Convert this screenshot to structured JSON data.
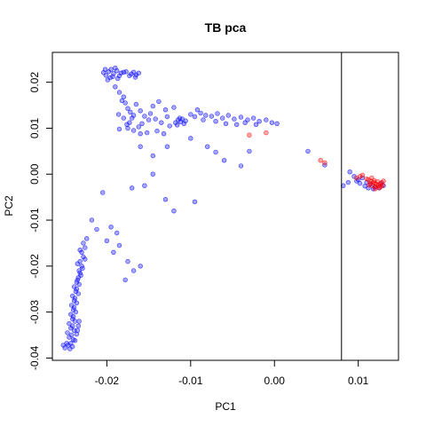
{
  "chart_data": {
    "type": "scatter",
    "title": "TB pca",
    "xlabel": "PC1",
    "ylabel": "PC2",
    "xlim": [
      -0.0265,
      0.0148
    ],
    "ylim": [
      -0.0405,
      0.0265
    ],
    "xticks": [
      {
        "value": -0.02,
        "label": "-0.02"
      },
      {
        "value": -0.01,
        "label": "-0.01"
      },
      {
        "value": 0.0,
        "label": "0.00"
      },
      {
        "value": 0.01,
        "label": "0.01"
      }
    ],
    "yticks": [
      {
        "value": -0.04,
        "label": "-0.04"
      },
      {
        "value": -0.03,
        "label": "-0.03"
      },
      {
        "value": -0.02,
        "label": "-0.02"
      },
      {
        "value": -0.01,
        "label": "-0.01"
      },
      {
        "value": 0.0,
        "label": "0.00"
      },
      {
        "value": 0.01,
        "label": "0.01"
      },
      {
        "value": 0.02,
        "label": "0.02"
      }
    ],
    "vline": 0.008,
    "grid": false,
    "colors": {
      "group_a": "#0000ff",
      "group_b": "#ff0000",
      "vline": "#000000"
    },
    "series": [
      {
        "color": "blue",
        "points": [
          [
            -0.0198,
            0.0223
          ],
          [
            -0.0195,
            0.0228
          ],
          [
            -0.0192,
            0.0219
          ],
          [
            -0.0201,
            0.0215
          ],
          [
            -0.0188,
            0.0225
          ],
          [
            -0.0196,
            0.021
          ],
          [
            -0.0185,
            0.0214
          ],
          [
            -0.0204,
            0.0221
          ],
          [
            -0.019,
            0.0231
          ],
          [
            -0.0183,
            0.022
          ],
          [
            -0.0199,
            0.0205
          ],
          [
            -0.0193,
            0.0212
          ],
          [
            -0.0187,
            0.0208
          ],
          [
            -0.018,
            0.0222
          ],
          [
            -0.0202,
            0.0228
          ],
          [
            -0.0171,
            0.0218
          ],
          [
            -0.0168,
            0.0222
          ],
          [
            -0.0165,
            0.0216
          ],
          [
            -0.0173,
            0.0214
          ],
          [
            -0.0162,
            0.022
          ],
          [
            -0.0166,
            0.0211
          ],
          [
            -0.0177,
            0.0223
          ],
          [
            -0.019,
            0.019
          ],
          [
            -0.0185,
            0.0178
          ],
          [
            -0.018,
            0.0168
          ],
          [
            -0.0178,
            0.0155
          ],
          [
            -0.0175,
            0.0143
          ],
          [
            -0.0172,
            0.0135
          ],
          [
            -0.017,
            0.0122
          ],
          [
            -0.0182,
            0.016
          ],
          [
            -0.0176,
            0.0108
          ],
          [
            -0.0168,
            0.0128
          ],
          [
            -0.0173,
            0.0112
          ],
          [
            -0.0186,
            0.013
          ],
          [
            -0.018,
            0.0122
          ],
          [
            -0.0165,
            0.0152
          ],
          [
            -0.016,
            0.0138
          ],
          [
            -0.0155,
            0.0126
          ],
          [
            -0.015,
            0.0118
          ],
          [
            -0.0158,
            0.011
          ],
          [
            -0.0162,
            0.0103
          ],
          [
            -0.0148,
            0.0132
          ],
          [
            -0.0145,
            0.0148
          ],
          [
            -0.0138,
            0.0158
          ],
          [
            -0.0142,
            0.012
          ],
          [
            -0.0135,
            0.0112
          ],
          [
            -0.0128,
            0.0125
          ],
          [
            -0.013,
            0.014
          ],
          [
            -0.012,
            0.0145
          ],
          [
            -0.0125,
            0.0105
          ],
          [
            -0.0115,
            0.0118
          ],
          [
            -0.0112,
            0.0114
          ],
          [
            -0.0118,
            0.0112
          ],
          [
            -0.011,
            0.012
          ],
          [
            -0.0108,
            0.011
          ],
          [
            -0.0116,
            0.0107
          ],
          [
            -0.0113,
            0.0122
          ],
          [
            -0.0106,
            0.0116
          ],
          [
            -0.01,
            0.013
          ],
          [
            -0.0095,
            0.0125
          ],
          [
            -0.0088,
            0.0133
          ],
          [
            -0.0082,
            0.0128
          ],
          [
            -0.0075,
            0.0126
          ],
          [
            -0.0068,
            0.0132
          ],
          [
            -0.0062,
            0.0122
          ],
          [
            -0.0055,
            0.0128
          ],
          [
            -0.0048,
            0.012
          ],
          [
            -0.004,
            0.0124
          ],
          [
            -0.0032,
            0.0118
          ],
          [
            -0.0025,
            0.0122
          ],
          [
            -0.0018,
            0.0115
          ],
          [
            -0.001,
            0.0118
          ],
          [
            -0.0003,
            0.0112
          ],
          [
            0.0003,
            0.011
          ],
          [
            -0.0092,
            0.014
          ],
          [
            -0.0085,
            0.0118
          ],
          [
            -0.007,
            0.0115
          ],
          [
            -0.0058,
            0.011
          ],
          [
            -0.0045,
            0.0108
          ],
          [
            -0.0035,
            0.0112
          ],
          [
            -0.0022,
            0.0108
          ],
          [
            -0.0175,
            0.01
          ],
          [
            -0.0168,
            0.0095
          ],
          [
            -0.016,
            0.0088
          ],
          [
            -0.0152,
            0.009
          ],
          [
            -0.014,
            0.0094
          ],
          [
            -0.0132,
            0.0088
          ],
          [
            -0.0185,
            0.0098
          ],
          [
            -0.016,
            0.006
          ],
          [
            -0.0145,
            0.004
          ],
          [
            -0.0128,
            0.006
          ],
          [
            -0.01,
            0.0078
          ],
          [
            -0.008,
            0.006
          ],
          [
            -0.007,
            0.0048
          ],
          [
            -0.006,
            0.003
          ],
          [
            -0.0145,
            0.0
          ],
          [
            -0.017,
            -0.003
          ],
          [
            -0.0155,
            -0.0025
          ],
          [
            -0.013,
            -0.0055
          ],
          [
            -0.012,
            -0.008
          ],
          [
            -0.0095,
            -0.006
          ],
          [
            -0.004,
            0.0018
          ],
          [
            -0.003,
            0.005
          ],
          [
            0.004,
            0.005
          ],
          [
            0.006,
            0.002
          ],
          [
            0.0088,
            -0.0018
          ],
          [
            0.009,
            0.0005
          ],
          [
            0.0082,
            -0.0025
          ],
          [
            -0.0205,
            -0.004
          ],
          [
            -0.0218,
            -0.01
          ],
          [
            -0.0212,
            -0.012
          ],
          [
            -0.02,
            -0.0145
          ],
          [
            -0.0185,
            -0.0155
          ],
          [
            -0.0175,
            -0.019
          ],
          [
            -0.0168,
            -0.021
          ],
          [
            -0.0178,
            -0.023
          ],
          [
            -0.016,
            -0.02
          ],
          [
            -0.0192,
            -0.017
          ],
          [
            -0.0195,
            -0.0115
          ],
          [
            -0.0188,
            -0.0128
          ],
          [
            -0.0228,
            -0.015
          ],
          [
            -0.0226,
            -0.016
          ],
          [
            -0.023,
            -0.017
          ],
          [
            -0.0228,
            -0.018
          ],
          [
            -0.0232,
            -0.019
          ],
          [
            -0.023,
            -0.02
          ],
          [
            -0.0233,
            -0.021
          ],
          [
            -0.0231,
            -0.022
          ],
          [
            -0.0235,
            -0.023
          ],
          [
            -0.0233,
            -0.024
          ],
          [
            -0.0236,
            -0.025
          ],
          [
            -0.0234,
            -0.026
          ],
          [
            -0.0238,
            -0.027
          ],
          [
            -0.0236,
            -0.028
          ],
          [
            -0.0239,
            -0.029
          ],
          [
            -0.0237,
            -0.03
          ],
          [
            -0.024,
            -0.031
          ],
          [
            -0.0238,
            -0.032
          ],
          [
            -0.0241,
            -0.033
          ],
          [
            -0.0239,
            -0.034
          ],
          [
            -0.0242,
            -0.035
          ],
          [
            -0.024,
            -0.036
          ],
          [
            -0.0243,
            -0.0368
          ],
          [
            -0.0241,
            -0.0375
          ],
          [
            -0.0246,
            -0.0372
          ],
          [
            -0.025,
            -0.0378
          ],
          [
            -0.0248,
            -0.0368
          ],
          [
            -0.0244,
            -0.038
          ],
          [
            -0.0252,
            -0.0372
          ],
          [
            -0.0245,
            -0.0355
          ],
          [
            -0.0247,
            -0.0345
          ],
          [
            -0.0243,
            -0.0335
          ],
          [
            -0.0245,
            -0.0325
          ],
          [
            -0.0241,
            -0.0315
          ],
          [
            -0.0243,
            -0.0305
          ],
          [
            -0.024,
            -0.0295
          ],
          [
            -0.0242,
            -0.0285
          ],
          [
            -0.0239,
            -0.0275
          ],
          [
            -0.0241,
            -0.0265
          ],
          [
            -0.0237,
            -0.0255
          ],
          [
            -0.0239,
            -0.0245
          ],
          [
            -0.0236,
            -0.0235
          ],
          [
            -0.0234,
            -0.0225
          ],
          [
            -0.0232,
            -0.0215
          ],
          [
            -0.0229,
            -0.0205
          ],
          [
            -0.0235,
            -0.0195
          ],
          [
            -0.0226,
            -0.0185
          ],
          [
            -0.0224,
            -0.014
          ],
          [
            -0.0232,
            -0.0165
          ],
          [
            -0.0236,
            -0.0348
          ],
          [
            -0.0238,
            -0.0362
          ],
          [
            -0.0235,
            -0.034
          ],
          [
            -0.0234,
            -0.033
          ],
          [
            -0.0233,
            -0.032
          ],
          [
            0.0095,
            -0.0005
          ],
          [
            0.01,
            -0.0012
          ],
          [
            0.0105,
            -0.0008
          ],
          [
            0.011,
            -0.0018
          ],
          [
            0.0115,
            -0.0022
          ],
          [
            0.012,
            -0.0028
          ],
          [
            0.0125,
            -0.003
          ],
          [
            0.013,
            -0.0025
          ],
          [
            0.0108,
            -0.0026
          ],
          [
            0.0102,
            -0.002
          ],
          [
            0.0118,
            -0.0032
          ],
          [
            0.0112,
            -0.003
          ],
          [
            0.0098,
            -0.0015
          ],
          [
            0.0127,
            -0.002
          ]
        ]
      },
      {
        "color": "red",
        "points": [
          [
            0.0112,
            -0.0012
          ],
          [
            0.0115,
            -0.0015
          ],
          [
            0.0118,
            -0.0018
          ],
          [
            0.012,
            -0.002
          ],
          [
            0.0122,
            -0.0022
          ],
          [
            0.0124,
            -0.0025
          ],
          [
            0.0126,
            -0.0022
          ],
          [
            0.0128,
            -0.0018
          ],
          [
            0.0117,
            -0.0025
          ],
          [
            0.0121,
            -0.0028
          ],
          [
            0.0125,
            -0.003
          ],
          [
            0.0119,
            -0.0014
          ],
          [
            0.0123,
            -0.0016
          ],
          [
            0.0127,
            -0.0027
          ],
          [
            0.0114,
            -0.002
          ],
          [
            0.011,
            -0.001
          ],
          [
            0.0116,
            -0.0008
          ],
          [
            0.0129,
            -0.0024
          ],
          [
            0.0113,
            -0.0024
          ],
          [
            0.012,
            -0.0032
          ],
          [
            0.0102,
            -0.0005
          ],
          [
            0.0105,
            -0.0002
          ],
          [
            0.0098,
            -0.0008
          ],
          [
            0.0055,
            0.003
          ],
          [
            0.006,
            0.0025
          ],
          [
            -0.001,
            0.009
          ],
          [
            -0.003,
            0.0085
          ],
          [
            0.013,
            -0.0015
          ]
        ]
      }
    ]
  }
}
